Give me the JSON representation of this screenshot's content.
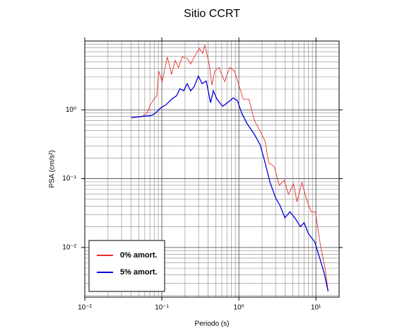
{
  "chart_data": {
    "type": "line",
    "title": "Sitio CCRT",
    "x_label": "Periodo (s)",
    "y_label": "PSA (cm/s²)",
    "log_x": true,
    "log_y": true,
    "grid": true,
    "legend": "lower left",
    "xlim": [
      0.01,
      20
    ],
    "ylim": [
      0.0019,
      10
    ],
    "xticks": [
      {
        "value": 0.01,
        "label": "10⁻²"
      },
      {
        "value": 0.1,
        "label": "10⁻¹"
      },
      {
        "value": 1,
        "label": "10⁰"
      },
      {
        "value": 10,
        "label": "10¹"
      }
    ],
    "yticks": [
      {
        "value": 0.01,
        "label": "10⁻²"
      },
      {
        "value": 0.1,
        "label": "10⁻¹"
      },
      {
        "value": 1,
        "label": "10⁰"
      }
    ],
    "series": [
      {
        "name": "0% amort.",
        "color": "#e8302a",
        "x": [
          0.04,
          0.054,
          0.064,
          0.071,
          0.079,
          0.086,
          0.091,
          0.101,
          0.118,
          0.134,
          0.149,
          0.165,
          0.184,
          0.213,
          0.237,
          0.263,
          0.306,
          0.34,
          0.362,
          0.411,
          0.447,
          0.487,
          0.552,
          0.655,
          0.759,
          0.881,
          1.0,
          1.14,
          1.35,
          1.59,
          1.89,
          2.19,
          2.44,
          2.88,
          3.34,
          3.88,
          4.4,
          5.11,
          5.69,
          6.59,
          7.48,
          8.66,
          9.85,
          11.4,
          13.2,
          14.4
        ],
        "values": [
          0.77,
          0.79,
          0.89,
          1.18,
          1.43,
          1.6,
          3.66,
          2.57,
          5.88,
          3.26,
          5.22,
          4.12,
          5.88,
          5.6,
          4.64,
          5.88,
          7.79,
          6.62,
          8.78,
          4.64,
          2.29,
          3.66,
          4.12,
          2.57,
          4.12,
          3.66,
          2.29,
          1.43,
          1.43,
          0.7,
          0.49,
          0.35,
          0.17,
          0.15,
          0.08,
          0.095,
          0.059,
          0.084,
          0.046,
          0.088,
          0.052,
          0.033,
          0.033,
          0.011,
          0.0049,
          0.0023
        ]
      },
      {
        "name": "5% amort.",
        "color": "#0000dd",
        "x": [
          0.04,
          0.048,
          0.06,
          0.074,
          0.082,
          0.097,
          0.113,
          0.134,
          0.155,
          0.172,
          0.192,
          0.213,
          0.237,
          0.263,
          0.298,
          0.333,
          0.377,
          0.429,
          0.466,
          0.519,
          0.614,
          0.713,
          0.844,
          0.958,
          1.09,
          1.29,
          1.59,
          1.89,
          2.19,
          2.54,
          3.01,
          3.41,
          3.96,
          4.6,
          5.44,
          6.31,
          7.02,
          7.97,
          9.67,
          11.2,
          12.7,
          14.4
        ],
        "values": [
          0.77,
          0.79,
          0.81,
          0.83,
          0.89,
          1.07,
          1.18,
          1.43,
          1.6,
          2.03,
          1.89,
          2.4,
          1.89,
          2.18,
          3.1,
          2.4,
          2.63,
          1.27,
          1.89,
          1.43,
          1.13,
          1.27,
          1.49,
          1.36,
          0.89,
          0.62,
          0.44,
          0.31,
          0.17,
          0.088,
          0.052,
          0.041,
          0.027,
          0.033,
          0.026,
          0.02,
          0.023,
          0.016,
          0.012,
          0.007,
          0.0044,
          0.0023
        ]
      }
    ]
  }
}
